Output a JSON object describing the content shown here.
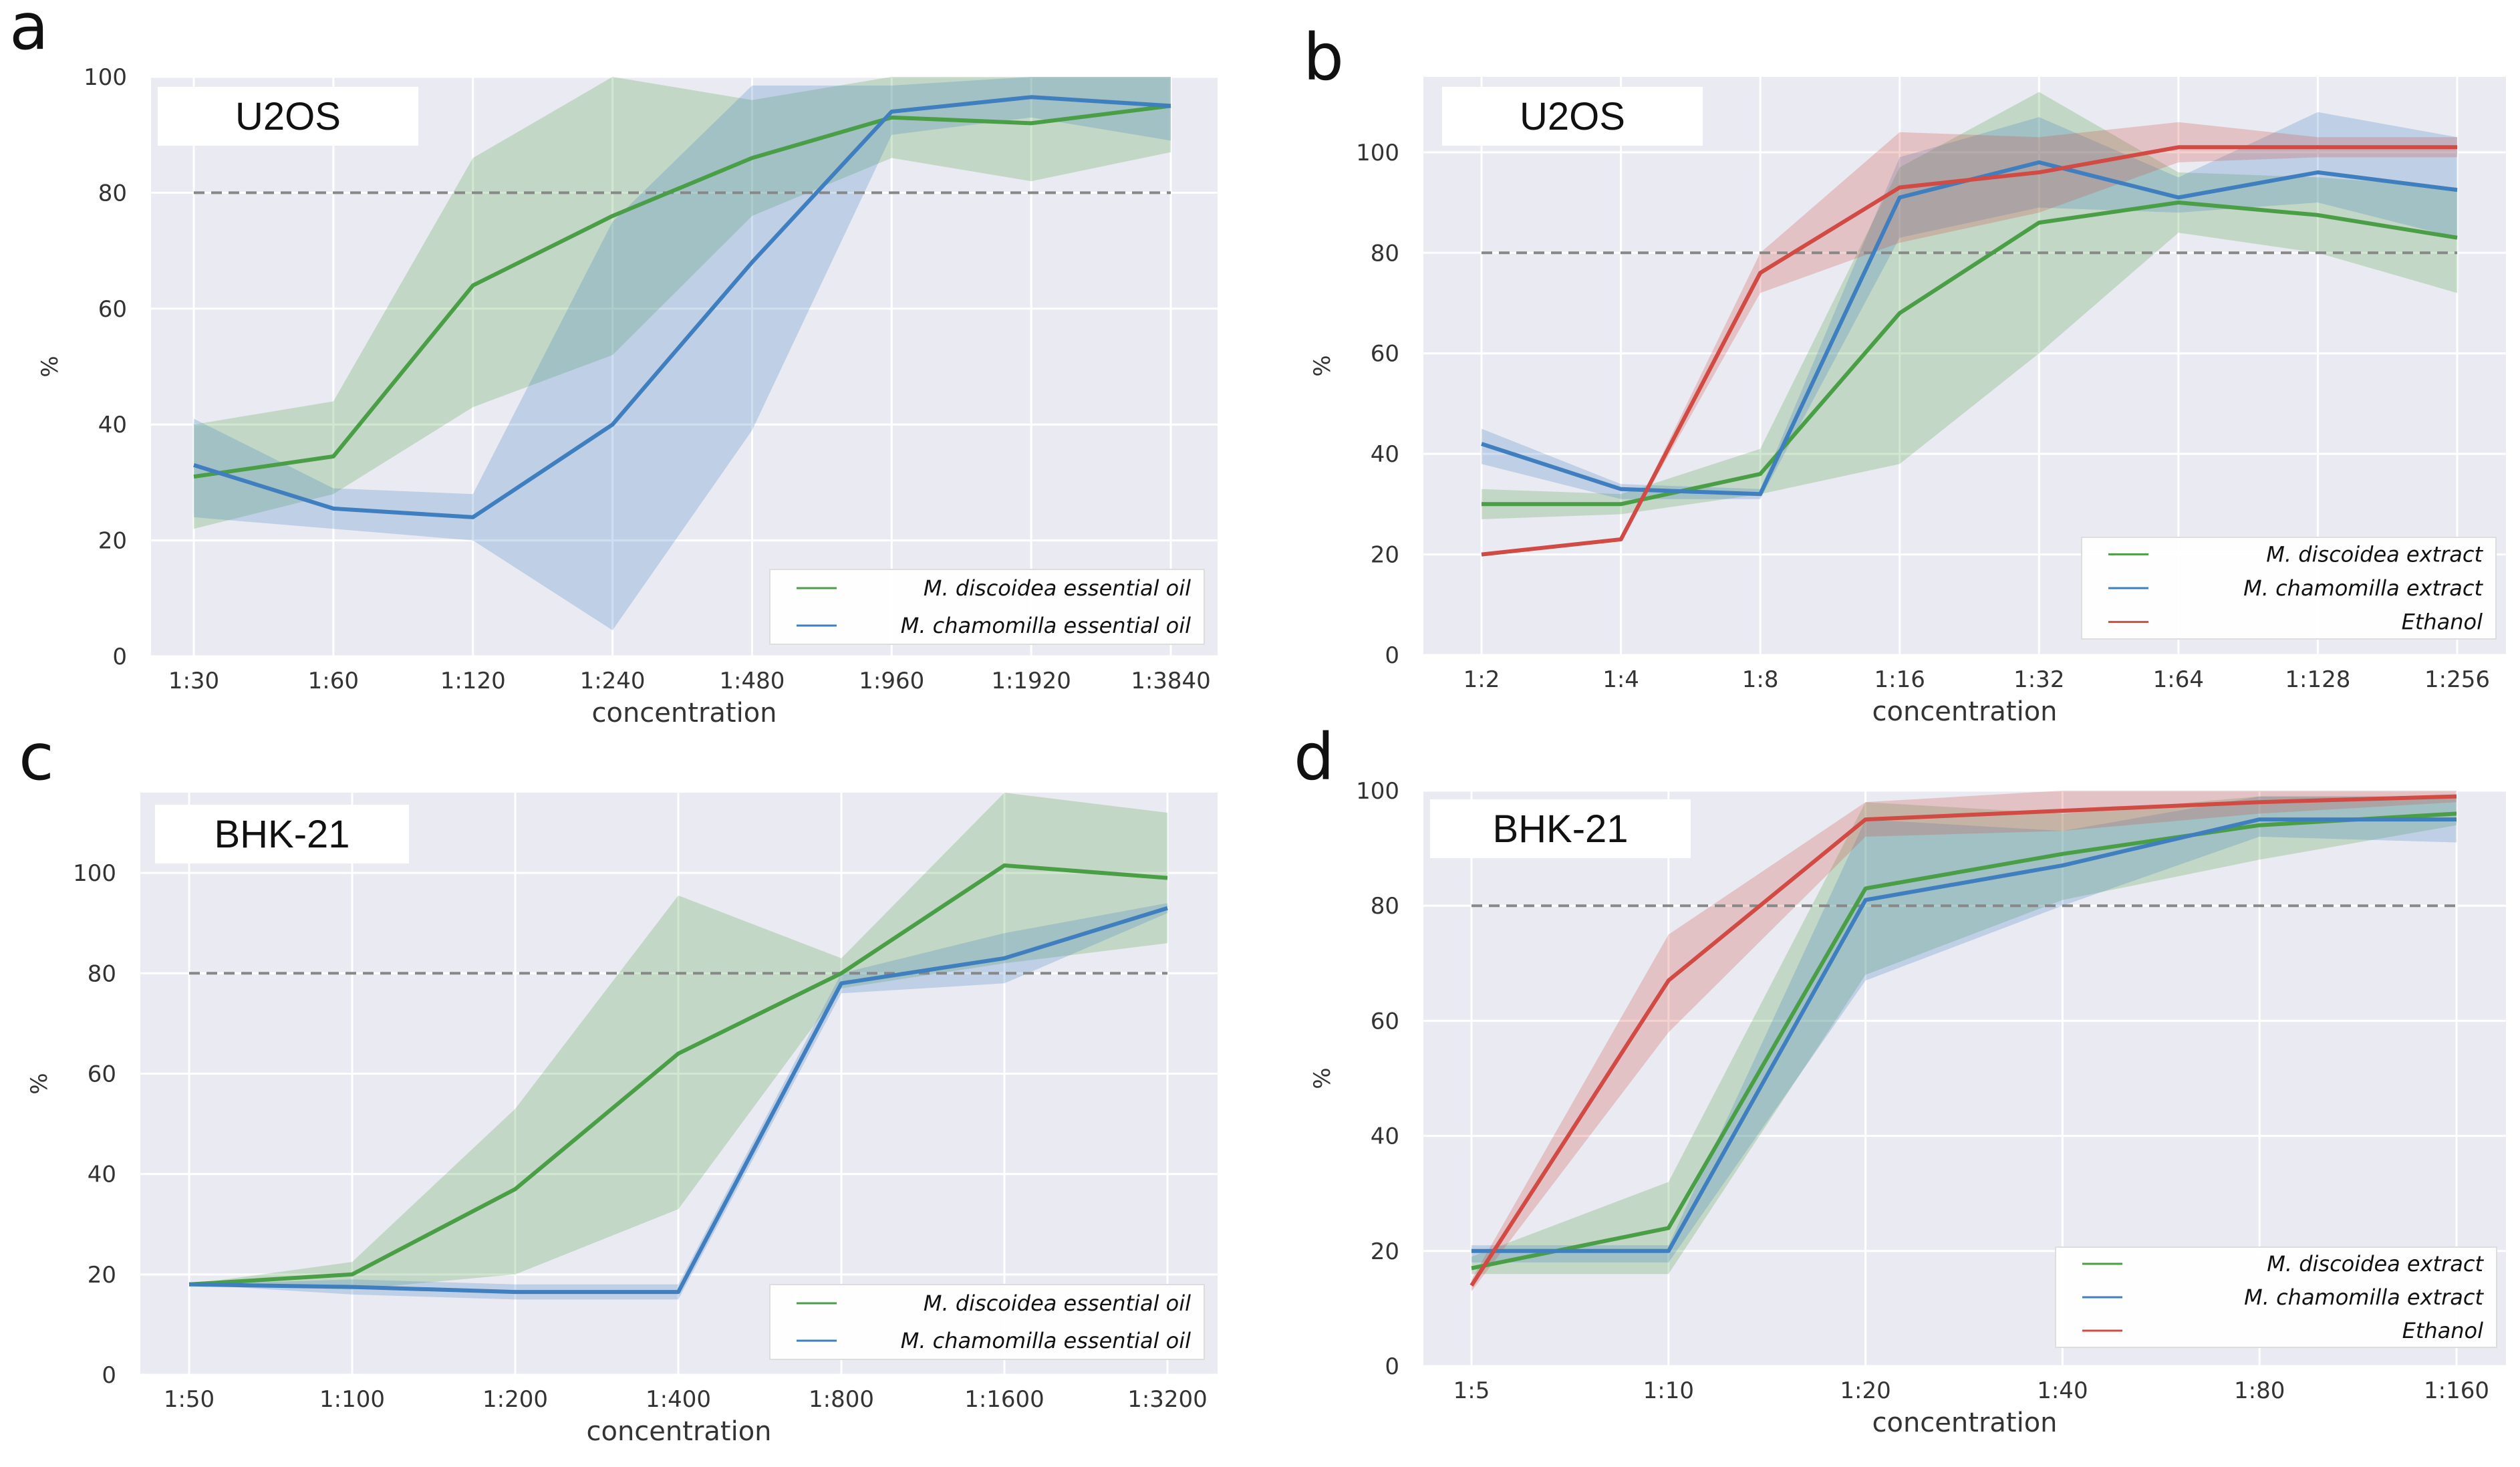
{
  "colors": {
    "green": "#4a9e45",
    "blue": "#3f7fbf",
    "red": "#d14a44",
    "plot_bg": "#eaeaf2",
    "grid": "#ffffff",
    "threshold": "#888888"
  },
  "chart_data": [
    {
      "id": "a",
      "panel_label": "a",
      "type": "line",
      "title": "U2OS",
      "xlabel": "concentration",
      "ylabel": "%",
      "categories": [
        "1:30",
        "1:60",
        "1:120",
        "1:240",
        "1:480",
        "1:960",
        "1:1920",
        "1:3840"
      ],
      "ylim": [
        0,
        100
      ],
      "yticks": [
        0,
        20,
        40,
        60,
        80,
        100
      ],
      "threshold": 80,
      "legend_position": "lower-right",
      "series": [
        {
          "name": "M. discoidea essential oil",
          "color": "green",
          "values": [
            31,
            34.5,
            64,
            76,
            86,
            93,
            92,
            95
          ],
          "lower": [
            22,
            28,
            43,
            52,
            76,
            86,
            82,
            87
          ],
          "upper": [
            40,
            44,
            86,
            100,
            96,
            100,
            100,
            100
          ]
        },
        {
          "name": "M. chamomilla essential oil",
          "color": "blue",
          "values": [
            33,
            25.5,
            24,
            40,
            68,
            94,
            96.5,
            95
          ],
          "lower": [
            24,
            22,
            20,
            4.5,
            39,
            90,
            93,
            89
          ],
          "upper": [
            41,
            29,
            28,
            75,
            98.5,
            98.5,
            100,
            100
          ]
        }
      ]
    },
    {
      "id": "b",
      "panel_label": "b",
      "type": "line",
      "title": "U2OS",
      "xlabel": "concentration",
      "ylabel": "%",
      "categories": [
        "1:2",
        "1:4",
        "1:8",
        "1:16",
        "1:32",
        "1:64",
        "1:128",
        "1:256"
      ],
      "ylim": [
        0,
        115
      ],
      "yticks": [
        0,
        20,
        40,
        60,
        80,
        100
      ],
      "threshold": 80,
      "legend_position": "lower-right",
      "series": [
        {
          "name": "M. discoidea extract",
          "color": "green",
          "values": [
            30,
            30,
            36,
            68,
            86,
            90,
            87.5,
            83
          ],
          "lower": [
            27,
            28,
            32,
            38,
            60,
            84,
            80,
            72
          ],
          "upper": [
            33,
            32,
            41,
            97,
            112,
            96,
            95,
            93
          ]
        },
        {
          "name": "M. chamomilla extract",
          "color": "blue",
          "values": [
            42,
            33,
            32,
            91,
            98,
            91,
            96,
            92.5
          ],
          "lower": [
            38,
            31,
            31,
            83,
            89,
            88,
            90,
            83
          ],
          "upper": [
            45,
            34,
            33,
            99,
            107,
            95,
            108,
            103
          ]
        },
        {
          "name": "Ethanol",
          "color": "red",
          "values": [
            20,
            23,
            76,
            93,
            96,
            101,
            101,
            101
          ],
          "lower": [
            20,
            23,
            72,
            82,
            88,
            98,
            99,
            99
          ],
          "upper": [
            20,
            23,
            80,
            104,
            103,
            106,
            103,
            103
          ]
        }
      ]
    },
    {
      "id": "c",
      "panel_label": "c",
      "type": "line",
      "title": "BHK-21",
      "xlabel": "concentration",
      "ylabel": "%",
      "categories": [
        "1:50",
        "1:100",
        "1:200",
        "1:400",
        "1:800",
        "1:1600",
        "1:3200"
      ],
      "ylim": [
        0,
        116
      ],
      "yticks": [
        0,
        20,
        40,
        60,
        80,
        100
      ],
      "threshold": 80,
      "legend_position": "lower-right",
      "series": [
        {
          "name": "M. discoidea essential oil",
          "color": "green",
          "values": [
            18,
            20,
            37,
            64,
            80,
            101.5,
            99
          ],
          "lower": [
            18,
            17,
            20,
            33,
            77,
            82,
            86
          ],
          "upper": [
            18,
            22.5,
            53,
            95.5,
            83,
            116,
            112
          ]
        },
        {
          "name": "M. chamomilla essential oil",
          "color": "blue",
          "values": [
            18,
            17.5,
            16.5,
            16.5,
            78,
            83,
            93
          ],
          "lower": [
            18,
            16,
            15,
            15,
            76,
            78,
            92
          ],
          "upper": [
            18,
            19,
            18,
            18,
            80,
            88,
            94
          ]
        }
      ]
    },
    {
      "id": "d",
      "panel_label": "d",
      "type": "line",
      "title": "BHK-21",
      "xlabel": "concentration",
      "ylabel": "%",
      "categories": [
        "1:5",
        "1:10",
        "1:20",
        "1:40",
        "1:80",
        "1:160"
      ],
      "ylim": [
        0,
        100
      ],
      "yticks": [
        0,
        20,
        40,
        60,
        80,
        100
      ],
      "threshold": 80,
      "legend_position": "lower-right",
      "series": [
        {
          "name": "M. discoidea extract",
          "color": "green",
          "values": [
            17,
            24,
            83,
            89,
            94,
            96
          ],
          "lower": [
            16,
            16,
            68,
            81,
            88,
            94
          ],
          "upper": [
            19,
            32,
            98,
            96,
            99,
            99
          ]
        },
        {
          "name": "M. chamomilla extract",
          "color": "blue",
          "values": [
            20,
            20,
            81,
            87,
            95,
            95
          ],
          "lower": [
            18,
            18,
            67,
            80,
            92,
            91
          ],
          "upper": [
            21,
            21,
            95,
            93,
            99,
            99
          ]
        },
        {
          "name": "Ethanol",
          "color": "red",
          "values": [
            14,
            67,
            95,
            96.5,
            98,
            99
          ],
          "lower": [
            13,
            58,
            92,
            93,
            96,
            98
          ],
          "upper": [
            15,
            75,
            98,
            100,
            100,
            100
          ]
        }
      ]
    }
  ]
}
